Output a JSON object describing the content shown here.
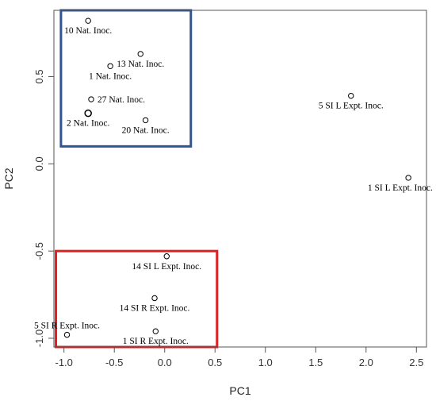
{
  "chart_data": {
    "type": "scatter",
    "xlabel": "PC1",
    "ylabel": "PC2",
    "xlim": [
      -1.1,
      2.6
    ],
    "ylim": [
      -1.05,
      0.88
    ],
    "xticks": [
      -1.0,
      -0.5,
      0.0,
      0.5,
      1.0,
      1.5,
      2.0,
      2.5
    ],
    "xtick_labels": [
      "-1.0",
      "-0.5",
      "0.0",
      "0.5",
      "1.0",
      "1.5",
      "2.0",
      "2.5"
    ],
    "yticks": [
      -1.0,
      -0.5,
      0.0,
      0.5
    ],
    "ytick_labels": [
      "-1.0",
      "-0.5",
      "0.0",
      "0.5"
    ],
    "grid": false,
    "points": [
      {
        "label": "10 Nat. Inoc.",
        "x": -0.76,
        "y": 0.82,
        "label_pos": "below"
      },
      {
        "label": "13 Nat. Inoc.",
        "x": -0.24,
        "y": 0.63,
        "label_pos": "below"
      },
      {
        "label": "1 Nat. Inoc.",
        "x": -0.54,
        "y": 0.56,
        "label_pos": "below"
      },
      {
        "label": "27 Nat. Inoc.",
        "x": -0.73,
        "y": 0.37,
        "label_pos": "right"
      },
      {
        "label": "2 Nat. Inoc.",
        "x": -0.76,
        "y": 0.29,
        "label_pos": "below",
        "size": "large"
      },
      {
        "label": "20 Nat. Inoc.",
        "x": -0.19,
        "y": 0.25,
        "label_pos": "below"
      },
      {
        "label": "5 SI L Expt. Inoc.",
        "x": 1.85,
        "y": 0.39,
        "label_pos": "below"
      },
      {
        "label": "1 SI L Expt. Inoc.",
        "x": 2.42,
        "y": -0.08,
        "label_pos": "below"
      },
      {
        "label": "14 SI L Expt. Inoc.",
        "x": 0.02,
        "y": -0.53,
        "label_pos": "below"
      },
      {
        "label": "14 SI R Expt. Inoc.",
        "x": -0.1,
        "y": -0.77,
        "label_pos": "below"
      },
      {
        "label": "5 SI R Expt. Inoc.",
        "x": -0.97,
        "y": -0.98,
        "label_pos": "above"
      },
      {
        "label": "1 SI R Expt. Inoc.",
        "x": -0.09,
        "y": -0.96,
        "label_pos": "below"
      }
    ],
    "highlight_boxes": [
      {
        "name": "natural-inoculation-group",
        "color": "#2f5597",
        "x0": -1.03,
        "x1": 0.26,
        "y0": 0.1,
        "y1": 0.88
      },
      {
        "name": "right-side-experimental-group",
        "color": "#e02020",
        "x0": -1.08,
        "x1": 0.52,
        "y0": -1.05,
        "y1": -0.5
      }
    ]
  }
}
